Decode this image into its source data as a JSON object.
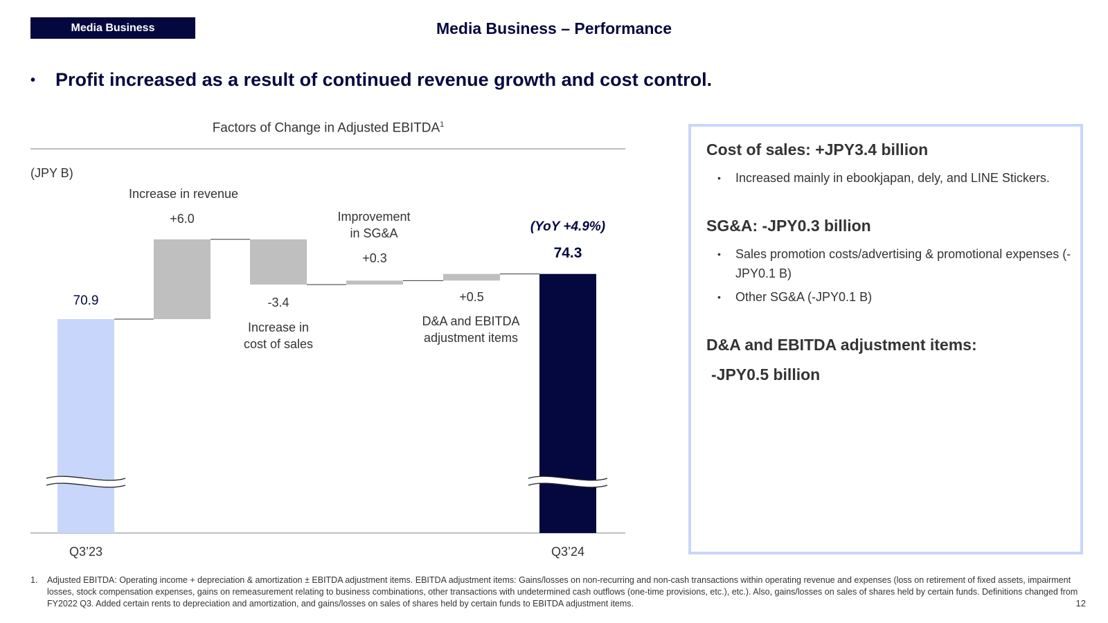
{
  "header": {
    "badge": "Media Business",
    "title": "Media Business – Performance"
  },
  "headline": {
    "bullet": "•",
    "text": "Profit increased as a result of continued revenue growth and cost control."
  },
  "chart_data": {
    "type": "waterfall",
    "title": "Factors of Change in Adjusted EBITDA",
    "title_superscript": "1",
    "unit": "(JPY B)",
    "axis_break": true,
    "bars": [
      {
        "category": "Q3’23",
        "kind": "total",
        "value": 70.9,
        "value_label": "70.9",
        "color": "#c9d6fb"
      },
      {
        "category": "Increase in revenue",
        "kind": "delta",
        "value": 6.0,
        "value_label": "+6.0",
        "color": "#bfbfbf"
      },
      {
        "category": "Increase in cost of sales",
        "kind": "delta",
        "value": -3.4,
        "value_label": "-3.4",
        "color": "#bfbfbf"
      },
      {
        "category": "Improvement in SG&A",
        "kind": "delta",
        "value": 0.3,
        "value_label": "+0.3",
        "color": "#bfbfbf"
      },
      {
        "category": "D&A and EBITDA adjustment items",
        "kind": "delta",
        "value": 0.5,
        "value_label": "+0.5",
        "color": "#bfbfbf"
      },
      {
        "category": "Q3’24",
        "kind": "total",
        "value": 74.3,
        "value_label": "74.3",
        "color": "#05083f"
      }
    ],
    "annotation": "(YoY +4.9%)",
    "delta_labels": {
      "revenue": "Increase in revenue",
      "cost_line1": "Increase in",
      "cost_line2": "cost of sales",
      "sga_line1": "Improvement",
      "sga_line2": "in SG&A",
      "da_line1": "D&A and EBITDA",
      "da_line2": "adjustment items"
    },
    "x_ticks": [
      "Q3’23",
      "Q3’24"
    ],
    "colors": {
      "base": "#c9d6fb",
      "delta": "#bfbfbf",
      "final": "#05083f",
      "navy": "#05083f"
    }
  },
  "side_panel": {
    "sections": [
      {
        "heading": "Cost of sales: +JPY3.4 billion",
        "bullets": [
          "Increased mainly in ebookjapan, dely, and LINE Stickers."
        ]
      },
      {
        "heading": "SG&A: -JPY0.3 billion",
        "bullets": [
          "Sales promotion costs/advertising & promotional expenses (-JPY0.1 B)",
          "Other SG&A (-JPY0.1 B)"
        ]
      },
      {
        "heading": "D&A and EBITDA adjustment items:",
        "subheading": "-JPY0.5 billion",
        "bullets": []
      }
    ],
    "bullet_char": "•"
  },
  "footnote": {
    "number": "1.",
    "text": "Adjusted EBITDA: Operating income + depreciation & amortization ± EBITDA adjustment items. EBITDA adjustment items: Gains/losses on non-recurring and non-cash transactions within operating revenue and expenses (loss on retirement of fixed assets, impairment losses, stock compensation expenses, gains on remeasurement relating to business combinations, other transactions with undetermined cash outflows (one-time provisions, etc.), etc.). Also, gains/losses on sales of shares held by certain funds. Definitions changed from FY2022 Q3. Added certain rents to depreciation and amortization, and gains/losses on sales of shares held by certain funds to EBITDA adjustment items."
  },
  "page_number": "12"
}
